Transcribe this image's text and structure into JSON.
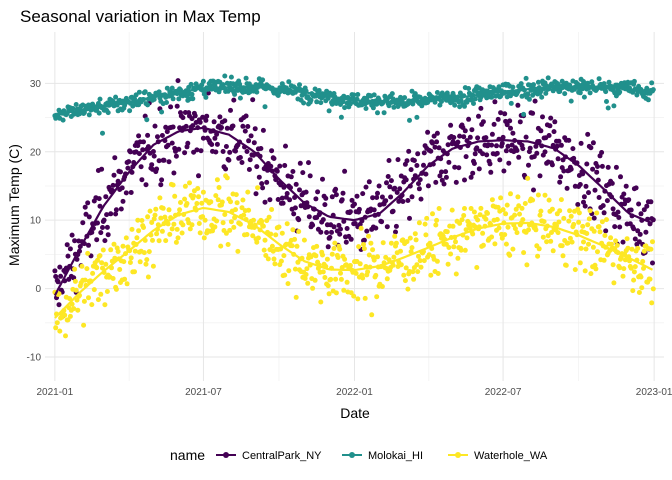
{
  "chart_data": {
    "type": "scatter",
    "title": "Seasonal variation in Max Temp",
    "xlabel": "Date",
    "ylabel": "Maximum Temp (C)",
    "xlim": [
      "2020-12-20",
      "2023-01-13"
    ],
    "ylim": [
      -13.5,
      37.5
    ],
    "x_ticks": [
      "2021-01",
      "2021-07",
      "2022-01",
      "2022-07",
      "2023-01"
    ],
    "y_ticks": [
      -10,
      0,
      10,
      20,
      30
    ],
    "grid": true,
    "legend": {
      "title": "name",
      "position": "bottom"
    },
    "series": [
      {
        "name": "CentralPark_NY",
        "color": "#440154",
        "smooth": [
          [
            "2021-01-01",
            -1
          ],
          [
            "2021-02-01",
            6
          ],
          [
            "2021-03-01",
            12
          ],
          [
            "2021-04-01",
            17
          ],
          [
            "2021-05-01",
            21
          ],
          [
            "2021-06-01",
            23
          ],
          [
            "2021-07-01",
            23.5
          ],
          [
            "2021-08-01",
            22.5
          ],
          [
            "2021-09-01",
            20
          ],
          [
            "2021-10-01",
            16
          ],
          [
            "2021-11-01",
            12.5
          ],
          [
            "2021-12-01",
            10.5
          ],
          [
            "2022-01-01",
            10
          ],
          [
            "2022-02-01",
            11
          ],
          [
            "2022-03-01",
            14
          ],
          [
            "2022-04-01",
            18
          ],
          [
            "2022-05-01",
            20.5
          ],
          [
            "2022-06-01",
            21.5
          ],
          [
            "2022-07-01",
            21.7
          ],
          [
            "2022-08-01",
            21.5
          ],
          [
            "2022-09-01",
            20.5
          ],
          [
            "2022-10-01",
            18
          ],
          [
            "2022-11-01",
            14.5
          ],
          [
            "2022-12-01",
            11
          ],
          [
            "2022-12-31",
            9.5
          ]
        ]
      },
      {
        "name": "Molokai_HI",
        "color": "#21908C",
        "smooth": [
          [
            "2021-01-01",
            25.5
          ],
          [
            "2021-03-01",
            26.5
          ],
          [
            "2021-05-01",
            28
          ],
          [
            "2021-07-01",
            29.3
          ],
          [
            "2021-09-01",
            29.5
          ],
          [
            "2021-11-01",
            28.7
          ],
          [
            "2022-01-01",
            27.5
          ],
          [
            "2022-03-01",
            27.2
          ],
          [
            "2022-05-01",
            27.8
          ],
          [
            "2022-07-01",
            28.8
          ],
          [
            "2022-09-01",
            29.5
          ],
          [
            "2022-11-01",
            29.5
          ],
          [
            "2022-12-31",
            28.8
          ]
        ]
      },
      {
        "name": "Waterhole_WA",
        "color": "#FDE725",
        "smooth": [
          [
            "2021-01-01",
            -4.3
          ],
          [
            "2021-02-01",
            -0.5
          ],
          [
            "2021-03-01",
            2.5
          ],
          [
            "2021-04-01",
            5.5
          ],
          [
            "2021-05-01",
            8.5
          ],
          [
            "2021-06-01",
            10.8
          ],
          [
            "2021-07-01",
            11.8
          ],
          [
            "2021-08-01",
            11.2
          ],
          [
            "2021-09-01",
            9.3
          ],
          [
            "2021-10-01",
            6.5
          ],
          [
            "2021-11-01",
            4
          ],
          [
            "2021-12-01",
            2.8
          ],
          [
            "2022-01-01",
            2.7
          ],
          [
            "2022-02-01",
            3.3
          ],
          [
            "2022-03-01",
            4.5
          ],
          [
            "2022-04-01",
            6
          ],
          [
            "2022-05-01",
            7.5
          ],
          [
            "2022-06-01",
            8.8
          ],
          [
            "2022-07-01",
            9.5
          ],
          [
            "2022-08-01",
            9.6
          ],
          [
            "2022-09-01",
            9
          ],
          [
            "2022-10-01",
            7.8
          ],
          [
            "2022-11-01",
            6.2
          ],
          [
            "2022-12-01",
            4.5
          ],
          [
            "2022-12-31",
            2.7
          ]
        ]
      }
    ]
  }
}
